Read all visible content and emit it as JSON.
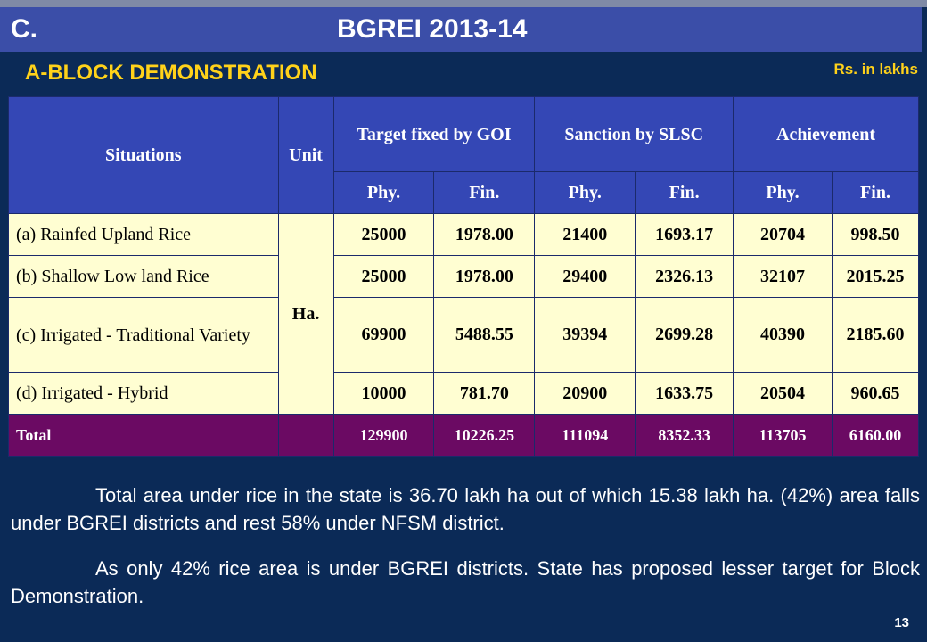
{
  "slide": {
    "section_letter": "C.",
    "title": "BGREI 2013-14",
    "subtitle": "A-BLOCK DEMONSTRATION",
    "units_note": "Rs. in lakhs",
    "page_number": "13"
  },
  "table": {
    "headers": {
      "situations": "Situations",
      "unit": "Unit",
      "target": "Target fixed by GOI",
      "sanction": "Sanction by SLSC",
      "achievement": "Achievement",
      "phy": "Phy.",
      "fin": "Fin."
    },
    "unit_value": "Ha.",
    "rows": [
      {
        "situation": "(a) Rainfed Upland Rice",
        "target_phy": "25000",
        "target_fin": "1978.00",
        "sanction_phy": "21400",
        "sanction_fin": "1693.17",
        "ach_phy": "20704",
        "ach_fin": "998.50"
      },
      {
        "situation": "(b) Shallow Low land Rice",
        "target_phy": "25000",
        "target_fin": "1978.00",
        "sanction_phy": "29400",
        "sanction_fin": "2326.13",
        "ach_phy": "32107",
        "ach_fin": "2015.25"
      },
      {
        "situation": "(c) Irrigated - Traditional Variety",
        "target_phy": "69900",
        "target_fin": "5488.55",
        "sanction_phy": "39394",
        "sanction_fin": "2699.28",
        "ach_phy": "40390",
        "ach_fin": "2185.60"
      },
      {
        "situation": "(d) Irrigated - Hybrid",
        "target_phy": "10000",
        "target_fin": "781.70",
        "sanction_phy": "20900",
        "sanction_fin": "1633.75",
        "ach_phy": "20504",
        "ach_fin": "960.65"
      }
    ],
    "total": {
      "label": "Total",
      "target_phy": "129900",
      "target_fin": "10226.25",
      "sanction_phy": "111094",
      "sanction_fin": "8352.33",
      "ach_phy": "113705",
      "ach_fin": "6160.00"
    }
  },
  "notes": {
    "para1": "Total area under rice in the state is 36.70 lakh ha out of which 15.38 lakh ha. (42%) area falls under BGREI districts and rest 58% under NFSM district.",
    "para2": "As only 42% rice area is under BGREI districts. State has proposed lesser target for Block Demonstration."
  },
  "colors": {
    "background": "#0b2a57",
    "title_bar": "#3b4ea8",
    "subtitle": "#ffd21a",
    "header_cells": "#3447b5",
    "body_cells": "#fffed2",
    "total_row": "#6b0a63"
  }
}
